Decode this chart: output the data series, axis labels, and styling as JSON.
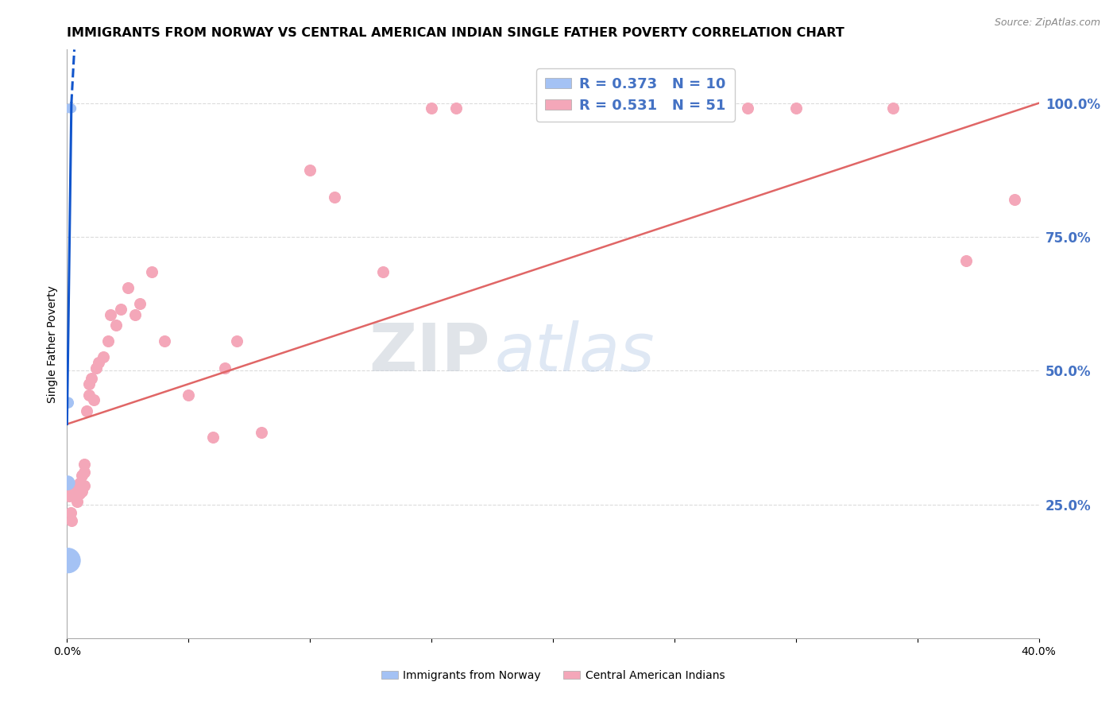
{
  "title": "IMMIGRANTS FROM NORWAY VS CENTRAL AMERICAN INDIAN SINGLE FATHER POVERTY CORRELATION CHART",
  "source": "Source: ZipAtlas.com",
  "ylabel": "Single Father Poverty",
  "y_tick_labels": [
    "25.0%",
    "50.0%",
    "75.0%",
    "100.0%"
  ],
  "y_tick_values": [
    0.25,
    0.5,
    0.75,
    1.0
  ],
  "norway_R": 0.373,
  "norway_N": 10,
  "cai_R": 0.531,
  "cai_N": 51,
  "norway_color": "#a4c2f4",
  "cai_color": "#f4a7b9",
  "norway_line_color": "#1155cc",
  "cai_line_color": "#e06666",
  "norway_scatter_x": [
    0.0005,
    0.001,
    0.0008,
    0.0012,
    0.0015,
    0.002,
    0.0018,
    0.0005,
    0.0003,
    0.0004
  ],
  "norway_scatter_y": [
    0.99,
    0.99,
    0.99,
    0.99,
    0.99,
    0.99,
    0.99,
    0.44,
    0.29,
    0.145
  ],
  "norway_scatter_sizes": [
    55,
    55,
    55,
    55,
    55,
    55,
    55,
    90,
    160,
    500
  ],
  "cai_scatter_x": [
    0.001,
    0.0015,
    0.002,
    0.002,
    0.003,
    0.003,
    0.004,
    0.004,
    0.005,
    0.005,
    0.005,
    0.006,
    0.006,
    0.007,
    0.007,
    0.007,
    0.008,
    0.009,
    0.009,
    0.01,
    0.011,
    0.012,
    0.013,
    0.015,
    0.017,
    0.018,
    0.02,
    0.022,
    0.025,
    0.028,
    0.03,
    0.035,
    0.04,
    0.05,
    0.06,
    0.065,
    0.07,
    0.08,
    0.1,
    0.11,
    0.13,
    0.15,
    0.16,
    0.2,
    0.22,
    0.25,
    0.28,
    0.3,
    0.34,
    0.37,
    0.39
  ],
  "cai_scatter_y": [
    0.265,
    0.235,
    0.27,
    0.22,
    0.265,
    0.27,
    0.255,
    0.28,
    0.29,
    0.275,
    0.27,
    0.305,
    0.275,
    0.31,
    0.325,
    0.285,
    0.425,
    0.455,
    0.475,
    0.485,
    0.445,
    0.505,
    0.515,
    0.525,
    0.555,
    0.605,
    0.585,
    0.615,
    0.655,
    0.605,
    0.625,
    0.685,
    0.555,
    0.455,
    0.375,
    0.505,
    0.555,
    0.385,
    0.875,
    0.825,
    0.685,
    0.99,
    0.99,
    0.99,
    0.99,
    0.99,
    0.99,
    0.99,
    0.99,
    0.705,
    0.82
  ],
  "cai_scatter_sizes": [
    90,
    90,
    90,
    90,
    90,
    90,
    90,
    90,
    90,
    90,
    90,
    90,
    90,
    90,
    90,
    90,
    90,
    90,
    90,
    90,
    90,
    90,
    90,
    90,
    90,
    90,
    90,
    90,
    90,
    90,
    90,
    90,
    90,
    90,
    90,
    90,
    90,
    90,
    90,
    90,
    90,
    90,
    90,
    90,
    90,
    90,
    90,
    90,
    90,
    90,
    90
  ],
  "watermark_zip": "ZIP",
  "watermark_atlas": "atlas",
  "watermark_zip_color": "#d0d8e8",
  "watermark_atlas_color": "#c8d8f0",
  "background_color": "#ffffff",
  "grid_color": "#cccccc",
  "right_axis_color": "#4472c4",
  "title_fontsize": 11.5,
  "axis_label_fontsize": 10,
  "tick_label_fontsize": 10,
  "legend_fontsize": 13
}
